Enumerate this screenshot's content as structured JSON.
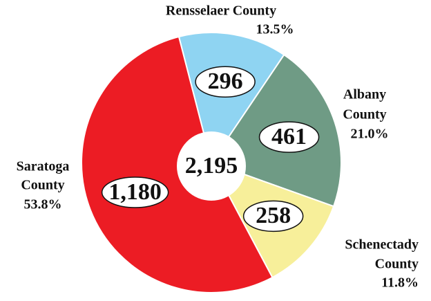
{
  "chart_data": {
    "type": "pie",
    "categories": [
      [
        "Rensselaer County"
      ],
      [
        "Albany",
        "County"
      ],
      [
        "Schenectady",
        "County"
      ],
      [
        "Saratoga",
        "County"
      ]
    ],
    "values": [
      296,
      461,
      258,
      1180
    ],
    "value_labels": [
      "296",
      "461",
      "258",
      "1,180"
    ],
    "percents": [
      13.5,
      21.0,
      11.8,
      53.8
    ],
    "percent_labels": [
      "13.5%",
      "21.0%",
      "11.8%",
      "53.8%"
    ],
    "colors": [
      "#8fd4f2",
      "#6f9b85",
      "#f7ef9a",
      "#ec1c24"
    ],
    "total": 2195,
    "total_label": "2,195"
  }
}
